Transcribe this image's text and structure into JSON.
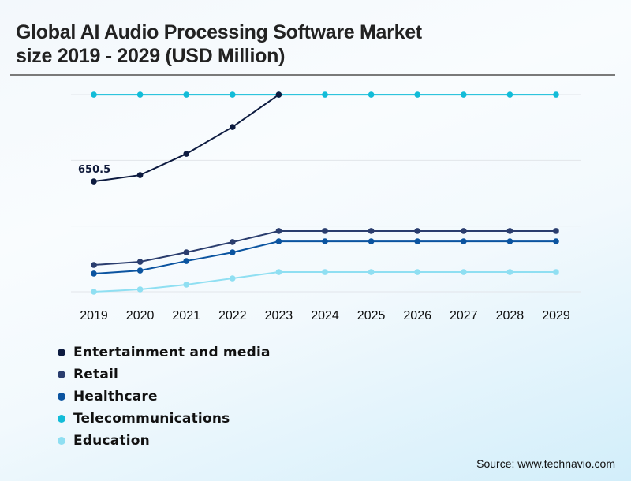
{
  "header": {
    "title_line1": "Global AI Audio Processing Software Market",
    "title_line2": "size 2019 - 2029 (USD Million)"
  },
  "source": "Source: www.technavio.com",
  "chart_data": {
    "type": "line",
    "title": "Global AI Audio Processing Software Market size 2019 - 2029 (USD Million)",
    "xlabel": "",
    "ylabel": "USD Million",
    "x": [
      "2019",
      "2020",
      "2021",
      "2022",
      "2023",
      "2024",
      "2025",
      "2026",
      "2027",
      "2028",
      "2029"
    ],
    "ylim": [
      0,
      1162
    ],
    "grid": true,
    "gridlines": 4,
    "legend_position": "bottom-left",
    "annotations": [
      {
        "series": "Entertainment and media",
        "x": "2019",
        "text": "650.5"
      }
    ],
    "series": [
      {
        "name": "Entertainment and media",
        "color": "#0d1b40",
        "values": [
          650.5,
          687.6,
          813.0,
          971.0,
          1161.5,
          null,
          null,
          null,
          null,
          null,
          null
        ]
      },
      {
        "name": "Retail",
        "color": "#2a3d6e",
        "values": [
          158,
          176.5,
          232,
          293,
          358,
          358,
          358,
          358,
          358,
          358,
          358
        ]
      },
      {
        "name": "Healthcare",
        "color": "#0b54a0",
        "values": [
          107,
          125,
          181,
          232,
          297,
          297,
          297,
          297,
          297,
          297,
          297
        ]
      },
      {
        "name": "Telecommunications",
        "color": "#12bcd8",
        "values": [
          1161.5,
          1161.5,
          1161.5,
          1161.5,
          1161.5,
          1161.5,
          1161.5,
          1161.5,
          1161.5,
          1161.5,
          1161.5
        ]
      },
      {
        "name": "Education",
        "color": "#8fdff2",
        "values": [
          0,
          14,
          42,
          79,
          116,
          116,
          116,
          116,
          116,
          116,
          116
        ]
      }
    ]
  }
}
